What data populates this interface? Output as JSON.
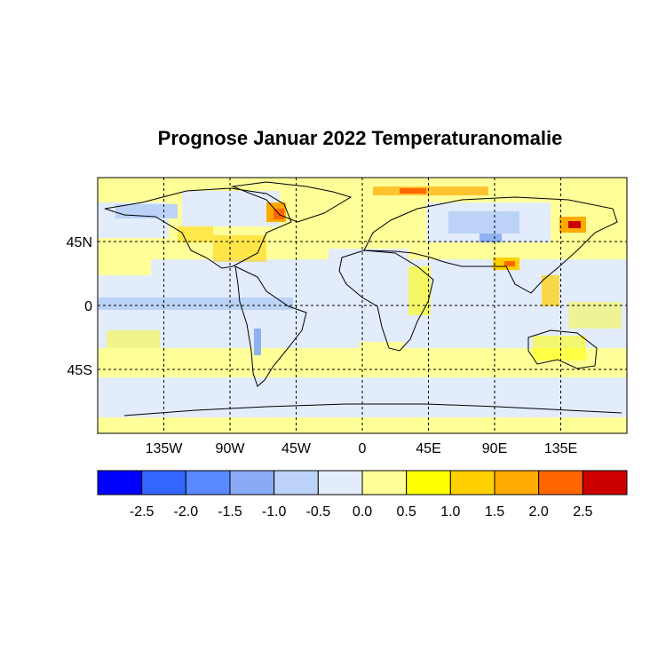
{
  "title": "Prognose Januar 2022 Temperaturanomalie",
  "map": {
    "lat_ticks": [
      "45N",
      "0",
      "45S"
    ],
    "lat_values": [
      45,
      0,
      -45
    ],
    "lon_ticks": [
      "135W",
      "90W",
      "45W",
      "0",
      "45E",
      "90E",
      "135E"
    ],
    "lon_values": [
      -135,
      -90,
      -45,
      0,
      45,
      90,
      135
    ],
    "lon_range": [
      -180,
      180
    ],
    "lat_range": [
      -90,
      90
    ],
    "grid": "dashed",
    "background_color": "#ffff99",
    "colors": {
      "light_blue": "#dde8fb",
      "blue": "#bcd3f7",
      "mid_blue": "#8fb1f2",
      "yellow": "#ffff99",
      "bright_yellow": "#ffff00",
      "orange": "#ffc800",
      "dark_orange": "#ff9900",
      "red": "#ff5a00",
      "dark_red": "#cc0000"
    }
  },
  "colorbar": {
    "colors": [
      "#0000ff",
      "#3366ff",
      "#5a88ff",
      "#8aaaf5",
      "#bcd3f7",
      "#e3ecfb",
      "#ffff99",
      "#ffff00",
      "#ffd000",
      "#ffaa00",
      "#ff6600",
      "#cc0000"
    ],
    "labels": [
      "-2.5",
      "-2.0",
      "-1.5",
      "-1.0",
      "-0.5",
      "0.0",
      "0.5",
      "1.0",
      "1.5",
      "2.0",
      "2.5"
    ]
  }
}
